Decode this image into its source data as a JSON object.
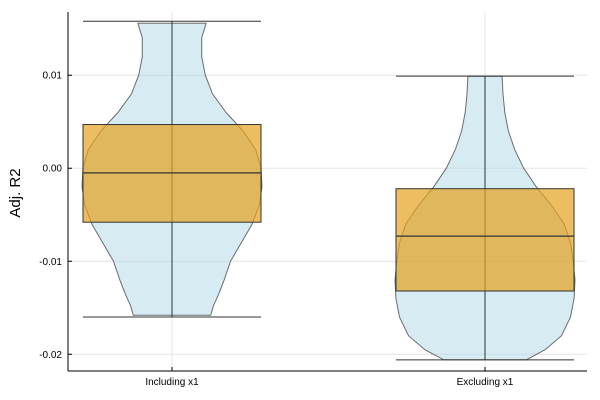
{
  "chart_data": {
    "type": "violin+box",
    "title": "",
    "xlabel": "",
    "ylabel": "Adj. R2",
    "ylim": [
      -0.0218,
      0.0168
    ],
    "yticks": [
      0.01,
      0.0,
      -0.01,
      -0.02
    ],
    "ytick_labels": [
      "0.01",
      "0.00",
      "-0.01",
      "-0.02"
    ],
    "grid": true,
    "legend": "none",
    "categories": [
      "Including x1",
      "Excluding x1"
    ],
    "boxes": [
      {
        "category": "Including x1",
        "whisker_low": -0.016,
        "q1": -0.0058,
        "median": -0.0005,
        "q3": 0.0047,
        "whisker_high": 0.0158
      },
      {
        "category": "Excluding x1",
        "whisker_low": -0.0206,
        "q1": -0.0132,
        "median": -0.0073,
        "q3": -0.0022,
        "whisker_high": 0.0099
      }
    ],
    "violins": [
      {
        "category": "Including x1",
        "y_min": -0.0158,
        "y_max": 0.0156,
        "profile": [
          [
            -0.0158,
            0.43
          ],
          [
            -0.0148,
            0.46
          ],
          [
            -0.0135,
            0.52
          ],
          [
            -0.012,
            0.58
          ],
          [
            -0.01,
            0.65
          ],
          [
            -0.008,
            0.77
          ],
          [
            -0.006,
            0.89
          ],
          [
            -0.004,
            0.97
          ],
          [
            -0.002,
            1.0
          ],
          [
            0.0,
            0.99
          ],
          [
            0.002,
            0.93
          ],
          [
            0.004,
            0.79
          ],
          [
            0.006,
            0.6
          ],
          [
            0.008,
            0.45
          ],
          [
            0.01,
            0.37
          ],
          [
            0.012,
            0.33
          ],
          [
            0.014,
            0.33
          ],
          [
            0.0156,
            0.38
          ]
        ]
      },
      {
        "category": "Excluding x1",
        "y_min": -0.0206,
        "y_max": 0.0099,
        "profile": [
          [
            -0.0206,
            0.46
          ],
          [
            -0.0195,
            0.67
          ],
          [
            -0.018,
            0.85
          ],
          [
            -0.016,
            0.95
          ],
          [
            -0.014,
            0.99
          ],
          [
            -0.012,
            1.0
          ],
          [
            -0.01,
            0.98
          ],
          [
            -0.008,
            0.95
          ],
          [
            -0.006,
            0.88
          ],
          [
            -0.004,
            0.74
          ],
          [
            -0.002,
            0.57
          ],
          [
            0.0,
            0.43
          ],
          [
            0.002,
            0.33
          ],
          [
            0.004,
            0.26
          ],
          [
            0.006,
            0.22
          ],
          [
            0.008,
            0.2
          ],
          [
            0.0099,
            0.19
          ]
        ]
      }
    ],
    "colors": {
      "violin_fill": "#add8e6",
      "box_fill": "#e6a11e",
      "line": "#333333",
      "grid": "#e5e5e5",
      "axis": "#000000"
    }
  }
}
